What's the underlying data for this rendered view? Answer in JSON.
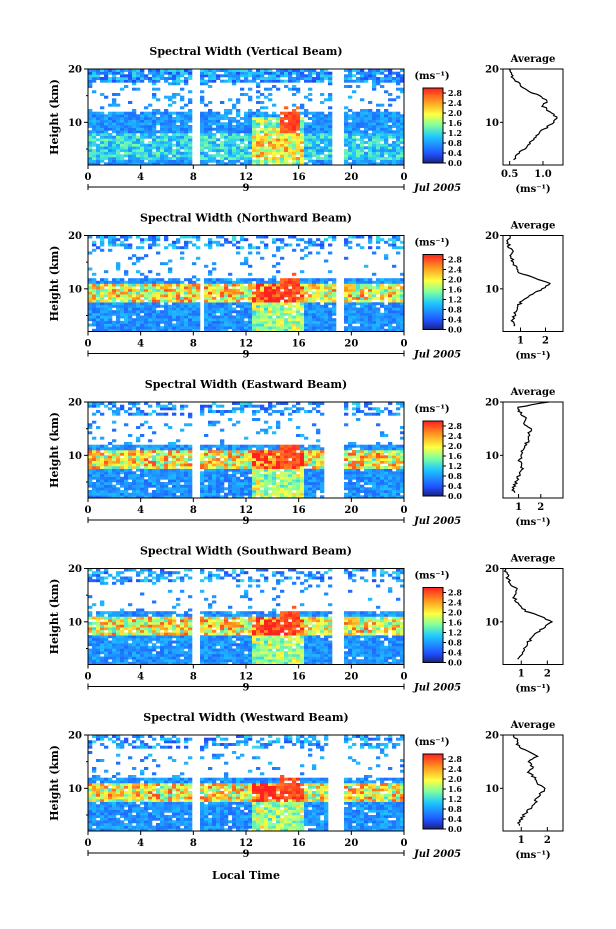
{
  "figure": {
    "date_label": "Jul 2005",
    "day_label": "9",
    "xlabel": "Local Time",
    "ylabel": "Height (km)",
    "colorbar_unit": "(ms⁻¹)",
    "avg_title": "Average",
    "avg_xlabel": "(ms⁻¹)"
  },
  "chart_data": [
    {
      "type": "heatmap",
      "title": "Spectral Width (Vertical Beam)",
      "xlabel": "Local Time",
      "ylabel": "Height (km)",
      "x_ticks": [
        "0",
        "4",
        "8",
        "12",
        "16",
        "20",
        "0"
      ],
      "xlim": [
        0,
        24
      ],
      "y_ticks": [
        "20",
        "10"
      ],
      "ylim": [
        2,
        20
      ],
      "colorbar_ticks": [
        "2.8",
        "2.4",
        "2.0",
        "1.6",
        "1.2",
        "0.8",
        "0.4",
        "0.0"
      ],
      "colorbar_range": [
        0,
        3.0
      ],
      "colorbar_unit": "(ms⁻¹)",
      "data_gaps_local_time": [
        [
          7.8,
          8.5
        ],
        [
          18.6,
          19.3
        ]
      ],
      "average_profile": {
        "title": "Average",
        "xlabel": "(ms⁻¹)",
        "x_ticks": [
          "0.5",
          "1.0"
        ],
        "xlim": [
          0.4,
          1.3
        ],
        "height_km": [
          3,
          4,
          5,
          6,
          7,
          8,
          9,
          10,
          11,
          12,
          13,
          14,
          15,
          16,
          17,
          18,
          19,
          20
        ],
        "values": [
          0.55,
          0.62,
          0.72,
          0.8,
          0.85,
          0.95,
          1.05,
          1.15,
          1.2,
          1.1,
          1.0,
          1.05,
          0.95,
          0.75,
          0.65,
          0.58,
          0.52,
          0.5
        ]
      }
    },
    {
      "type": "heatmap",
      "title": "Spectral Width (Northward Beam)",
      "xlabel": "Local Time",
      "ylabel": "Height (km)",
      "x_ticks": [
        "0",
        "4",
        "8",
        "12",
        "16",
        "20",
        "0"
      ],
      "xlim": [
        0,
        24
      ],
      "y_ticks": [
        "20",
        "10"
      ],
      "ylim": [
        2,
        20
      ],
      "colorbar_ticks": [
        "2.8",
        "2.4",
        "2.0",
        "1.6",
        "1.2",
        "0.8",
        "0.4",
        "0.0"
      ],
      "colorbar_range": [
        0,
        3.0
      ],
      "colorbar_unit": "(ms⁻¹)",
      "data_gaps_local_time": [
        [
          8.5,
          8.9
        ],
        [
          18.7,
          19.4
        ]
      ],
      "average_profile": {
        "title": "Average",
        "xlabel": "(ms⁻¹)",
        "x_ticks": [
          "1",
          "2"
        ],
        "xlim": [
          0.3,
          2.7
        ],
        "height_km": [
          3,
          4,
          5,
          6,
          7,
          8,
          9,
          10,
          11,
          12,
          13,
          14,
          15,
          16,
          17,
          18,
          19,
          20
        ],
        "values": [
          0.8,
          0.7,
          0.75,
          0.85,
          0.95,
          1.1,
          1.5,
          1.9,
          2.2,
          1.6,
          1.0,
          0.8,
          0.7,
          0.6,
          0.65,
          0.55,
          0.5,
          0.6
        ]
      }
    },
    {
      "type": "heatmap",
      "title": "Spectral Width (Eastward Beam)",
      "xlabel": "Local Time",
      "ylabel": "Height (km)",
      "x_ticks": [
        "0",
        "4",
        "8",
        "12",
        "16",
        "20",
        "0"
      ],
      "xlim": [
        0,
        24
      ],
      "y_ticks": [
        "20",
        "10"
      ],
      "ylim": [
        2,
        20
      ],
      "colorbar_ticks": [
        "2.8",
        "2.4",
        "2.0",
        "1.6",
        "1.2",
        "0.8",
        "0.4",
        "0.0"
      ],
      "colorbar_range": [
        0,
        3.0
      ],
      "colorbar_unit": "(ms⁻¹)",
      "data_gaps_local_time": [
        [
          7.9,
          8.5
        ],
        [
          18.0,
          19.3
        ]
      ],
      "average_profile": {
        "title": "Average",
        "xlabel": "(ms⁻¹)",
        "x_ticks": [
          "1",
          "2"
        ],
        "xlim": [
          0.3,
          3.0
        ],
        "height_km": [
          3,
          4,
          5,
          6,
          7,
          8,
          9,
          10,
          11,
          12,
          13,
          14,
          15,
          16,
          17,
          18,
          19,
          20
        ],
        "values": [
          0.8,
          0.75,
          0.9,
          1.0,
          1.1,
          1.2,
          1.05,
          1.1,
          1.2,
          1.3,
          1.5,
          1.4,
          1.6,
          1.2,
          1.3,
          1.1,
          0.9,
          2.4
        ]
      }
    },
    {
      "type": "heatmap",
      "title": "Spectral Width (Southward Beam)",
      "xlabel": "Local Time",
      "ylabel": "Height (km)",
      "x_ticks": [
        "0",
        "4",
        "8",
        "12",
        "16",
        "20",
        "0"
      ],
      "xlim": [
        0,
        24
      ],
      "y_ticks": [
        "20",
        "10"
      ],
      "ylim": [
        2,
        20
      ],
      "colorbar_ticks": [
        "2.8",
        "2.4",
        "2.0",
        "1.6",
        "1.2",
        "0.8",
        "0.4",
        "0.0"
      ],
      "colorbar_range": [
        0,
        3.0
      ],
      "colorbar_unit": "(ms⁻¹)",
      "data_gaps_local_time": [
        [
          8.0,
          8.5
        ],
        [
          18.5,
          19.3
        ]
      ],
      "average_profile": {
        "title": "Average",
        "xlabel": "(ms⁻¹)",
        "x_ticks": [
          "1",
          "2"
        ],
        "xlim": [
          0.3,
          2.6
        ],
        "height_km": [
          3,
          4,
          5,
          6,
          7,
          8,
          9,
          10,
          11,
          12,
          13,
          14,
          15,
          16,
          17,
          18,
          19,
          20
        ],
        "values": [
          0.9,
          1.0,
          1.1,
          1.25,
          1.4,
          1.6,
          1.9,
          2.2,
          1.8,
          1.2,
          0.9,
          0.8,
          0.7,
          0.85,
          0.6,
          0.5,
          0.45,
          0.4
        ]
      }
    },
    {
      "type": "heatmap",
      "title": "Spectral Width (Westward Beam)",
      "xlabel": "Local Time",
      "ylabel": "Height (km)",
      "x_ticks": [
        "0",
        "4",
        "8",
        "12",
        "16",
        "20",
        "0"
      ],
      "xlim": [
        0,
        24
      ],
      "y_ticks": [
        "20",
        "10"
      ],
      "ylim": [
        2,
        20
      ],
      "colorbar_ticks": [
        "2.8",
        "2.4",
        "2.0",
        "1.6",
        "1.2",
        "0.8",
        "0.4",
        "0.0"
      ],
      "colorbar_range": [
        0,
        3.0
      ],
      "colorbar_unit": "(ms⁻¹)",
      "data_gaps_local_time": [
        [
          7.9,
          8.5
        ],
        [
          18.3,
          19.3
        ]
      ],
      "average_profile": {
        "title": "Average",
        "xlabel": "(ms⁻¹)",
        "x_ticks": [
          "1",
          "2"
        ],
        "xlim": [
          0.3,
          2.6
        ],
        "height_km": [
          3,
          4,
          5,
          6,
          7,
          8,
          9,
          10,
          11,
          12,
          13,
          14,
          15,
          16,
          17,
          18,
          19,
          20
        ],
        "values": [
          0.9,
          0.95,
          1.1,
          1.3,
          1.5,
          1.6,
          1.75,
          1.9,
          1.6,
          1.5,
          1.3,
          1.4,
          1.3,
          1.6,
          1.2,
          0.9,
          0.8,
          0.75
        ]
      }
    }
  ]
}
